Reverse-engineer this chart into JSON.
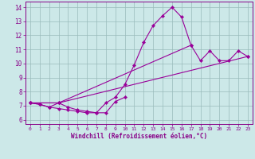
{
  "background_color": "#cce8e8",
  "line_color": "#990099",
  "grid_color": "#99bbbb",
  "xlabel": "Windchill (Refroidissement éolien,°C)",
  "xlabel_color": "#880088",
  "xlim": [
    -0.5,
    23.5
  ],
  "ylim": [
    5.7,
    14.4
  ],
  "xticks": [
    0,
    1,
    2,
    3,
    4,
    5,
    6,
    7,
    8,
    9,
    10,
    11,
    12,
    13,
    14,
    15,
    16,
    17,
    18,
    19,
    20,
    21,
    22,
    23
  ],
  "yticks": [
    6,
    7,
    8,
    9,
    10,
    11,
    12,
    13,
    14
  ],
  "series": [
    {
      "x": [
        0,
        1,
        2,
        3,
        4,
        5,
        6,
        7,
        8,
        9,
        10,
        11,
        12,
        13,
        14,
        15,
        16,
        17
      ],
      "y": [
        7.2,
        7.1,
        6.9,
        7.2,
        6.9,
        6.7,
        6.6,
        6.5,
        7.2,
        7.6,
        8.5,
        9.9,
        11.5,
        12.7,
        13.4,
        14.0,
        13.3,
        11.3
      ]
    },
    {
      "x": [
        0,
        1,
        2,
        3,
        4,
        5,
        6,
        7,
        8,
        9,
        10
      ],
      "y": [
        7.2,
        7.1,
        6.9,
        6.8,
        6.7,
        6.6,
        6.5,
        6.5,
        6.5,
        7.3,
        7.6
      ]
    },
    {
      "x": [
        0,
        3,
        17,
        18,
        19,
        20,
        21,
        22,
        23
      ],
      "y": [
        7.2,
        7.2,
        11.3,
        10.2,
        10.9,
        10.2,
        10.2,
        10.9,
        10.5
      ]
    },
    {
      "x": [
        0,
        3,
        23
      ],
      "y": [
        7.2,
        7.2,
        10.5
      ]
    }
  ]
}
